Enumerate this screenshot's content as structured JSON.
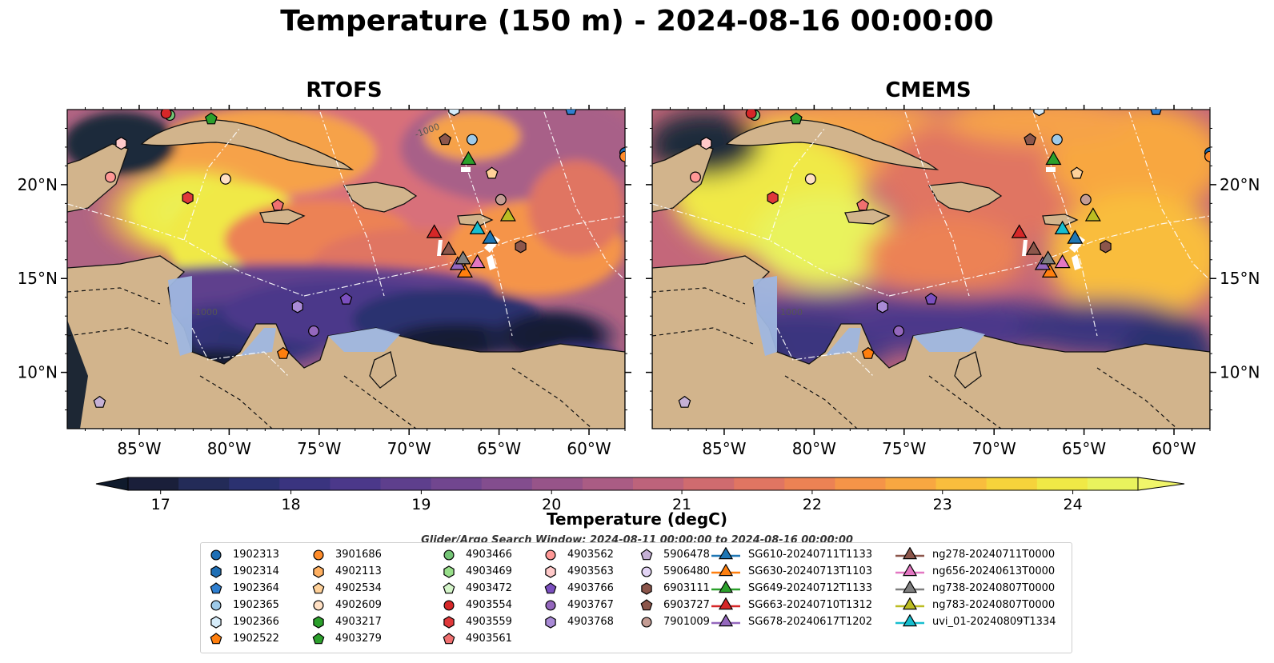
{
  "title": "Temperature (150 m) - 2024-08-16 00:00:00",
  "maps": [
    {
      "name": "RTOFS"
    },
    {
      "name": "CMEMS"
    }
  ],
  "lat_ticks": [
    "20°N",
    "15°N",
    "10°N"
  ],
  "lon_ticks": [
    "85°W",
    "80°W",
    "75°W",
    "70°W",
    "65°W",
    "60°W"
  ],
  "colorbar": {
    "label": "Temperature (degC)",
    "ticks": [
      "17",
      "18",
      "19",
      "20",
      "21",
      "22",
      "23",
      "24"
    ],
    "colors": [
      "#1a1f3a",
      "#232b58",
      "#2b3170",
      "#3a347f",
      "#4b388a",
      "#5e3f8d",
      "#71468f",
      "#834d8e",
      "#975489",
      "#aa5c84",
      "#bd637b",
      "#cf6b6f",
      "#e07562",
      "#ec8254",
      "#f59448",
      "#f8a741",
      "#f9bd3d",
      "#f6d33b",
      "#f0e946",
      "#e9f35d"
    ]
  },
  "search_window": "Glider/Argo Search Window: 2024-08-11 00:00:00 to 2024-08-16 00:00:00",
  "contour_label": "-1000",
  "legend": {
    "columns": [
      [
        {
          "label": "1902313",
          "shape": "circle",
          "color": "#1f6fb5"
        },
        {
          "label": "1902314",
          "shape": "hexagon",
          "color": "#1f6fb5"
        },
        {
          "label": "1902364",
          "shape": "pentagon",
          "color": "#2f7fd0"
        },
        {
          "label": "1902365",
          "shape": "circle",
          "color": "#9ecae9"
        },
        {
          "label": "1902366",
          "shape": "hexagon",
          "color": "#d6ecfa"
        },
        {
          "label": "1902522",
          "shape": "pentagon",
          "color": "#ff7f0e"
        }
      ],
      [
        {
          "label": "3901686",
          "shape": "circle",
          "color": "#ff8c2a"
        },
        {
          "label": "4902113",
          "shape": "hexagon",
          "color": "#ffb061"
        },
        {
          "label": "4902534",
          "shape": "pentagon",
          "color": "#ffd199"
        },
        {
          "label": "4902609",
          "shape": "circle",
          "color": "#ffe0c4"
        },
        {
          "label": "4903217",
          "shape": "hexagon",
          "color": "#2ca02c"
        },
        {
          "label": "4903279",
          "shape": "pentagon",
          "color": "#2ca02c"
        }
      ],
      [
        {
          "label": "4903466",
          "shape": "circle",
          "color": "#74c476"
        },
        {
          "label": "4903469",
          "shape": "hexagon",
          "color": "#98df8a"
        },
        {
          "label": "4903472",
          "shape": "pentagon",
          "color": "#d4f5c9"
        },
        {
          "label": "4903554",
          "shape": "circle",
          "color": "#d62728"
        },
        {
          "label": "4903559",
          "shape": "hexagon",
          "color": "#e0383a"
        },
        {
          "label": "4903561",
          "shape": "pentagon",
          "color": "#f07070"
        }
      ],
      [
        {
          "label": "4903562",
          "shape": "circle",
          "color": "#ff9896"
        },
        {
          "label": "4903563",
          "shape": "hexagon",
          "color": "#ffc9c9"
        },
        {
          "label": "4903766",
          "shape": "pentagon",
          "color": "#7b4fbf"
        },
        {
          "label": "4903767",
          "shape": "circle",
          "color": "#9467bd"
        },
        {
          "label": "4903768",
          "shape": "hexagon",
          "color": "#a98ad6"
        }
      ],
      [
        {
          "label": "5906478",
          "shape": "pentagon",
          "color": "#c5b0d5"
        },
        {
          "label": "5906480",
          "shape": "circle",
          "color": "#e3d4f5"
        },
        {
          "label": "6903111",
          "shape": "hexagon",
          "color": "#8c564b"
        },
        {
          "label": "6903727",
          "shape": "pentagon",
          "color": "#8c564b"
        },
        {
          "label": "7901009",
          "shape": "circle",
          "color": "#c49c94"
        }
      ],
      [
        {
          "label": "SG610-20240711T1133",
          "shape": "triangle",
          "color": "#1f77b4"
        },
        {
          "label": "SG630-20240713T1103",
          "shape": "triangle",
          "color": "#ff7f0e"
        },
        {
          "label": "SG649-20240712T1133",
          "shape": "triangle",
          "color": "#2ca02c"
        },
        {
          "label": "SG663-20240710T1312",
          "shape": "triangle",
          "color": "#d62728"
        },
        {
          "label": "SG678-20240617T1202",
          "shape": "triangle",
          "color": "#9467bd"
        }
      ],
      [
        {
          "label": "ng278-20240711T0000",
          "shape": "triangle",
          "color": "#8c564b"
        },
        {
          "label": "ng656-20240613T0000",
          "shape": "triangle",
          "color": "#e377c2"
        },
        {
          "label": "ng738-20240807T0000",
          "shape": "triangle",
          "color": "#7f7f7f"
        },
        {
          "label": "ng783-20240807T0000",
          "shape": "triangle",
          "color": "#bcbd22"
        },
        {
          "label": "uvi_01-20240809T1334",
          "shape": "triangle",
          "color": "#17becf"
        }
      ]
    ]
  },
  "chart_data": {
    "type": "heatmap",
    "title": "Temperature (150 m) - 2024-08-16 00:00:00",
    "panels": [
      "RTOFS",
      "CMEMS"
    ],
    "lon_range": [
      -89,
      -58
    ],
    "lat_range": [
      7,
      24
    ],
    "colorbar_label": "Temperature (degC)",
    "colorbar_range": [
      16.75,
      24.5
    ],
    "colorbar_ticks": [
      17,
      18,
      19,
      20,
      21,
      22,
      23,
      24
    ],
    "markers": [
      {
        "id": "1902313",
        "lon": -58.0,
        "lat": 21.7
      },
      {
        "id": "1902364",
        "lon": -61.0,
        "lat": 24.0
      },
      {
        "id": "1902365",
        "lon": -66.5,
        "lat": 22.4
      },
      {
        "id": "1902366",
        "lon": -67.5,
        "lat": 24.0
      },
      {
        "id": "1902522",
        "lon": -77.0,
        "lat": 11.0
      },
      {
        "id": "3901686",
        "lon": -58.0,
        "lat": 21.5
      },
      {
        "id": "4902534",
        "lon": -65.4,
        "lat": 20.6
      },
      {
        "id": "4902609",
        "lon": -80.2,
        "lat": 20.3
      },
      {
        "id": "4903279",
        "lon": -81.0,
        "lat": 23.5
      },
      {
        "id": "4903466",
        "lon": -83.3,
        "lat": 23.7
      },
      {
        "id": "4903554",
        "lon": -83.5,
        "lat": 23.8
      },
      {
        "id": "4903559",
        "lon": -82.3,
        "lat": 19.3
      },
      {
        "id": "4903561",
        "lon": -77.3,
        "lat": 18.9
      },
      {
        "id": "4903562",
        "lon": -86.6,
        "lat": 20.4
      },
      {
        "id": "4903563",
        "lon": -86.0,
        "lat": 22.2
      },
      {
        "id": "4903766",
        "lon": -73.5,
        "lat": 13.9
      },
      {
        "id": "4903767",
        "lon": -75.3,
        "lat": 12.2
      },
      {
        "id": "4903768",
        "lon": -76.2,
        "lat": 13.5
      },
      {
        "id": "5906478",
        "lon": -87.2,
        "lat": 8.4
      },
      {
        "id": "6903111",
        "lon": -63.8,
        "lat": 16.7
      },
      {
        "id": "6903727",
        "lon": -68.0,
        "lat": 22.4
      },
      {
        "id": "7901009",
        "lon": -64.9,
        "lat": 19.2
      },
      {
        "id": "SG610-20240711T1133",
        "lon": -65.5,
        "lat": 17.1
      },
      {
        "id": "SG630-20240713T1103",
        "lon": -66.9,
        "lat": 15.3
      },
      {
        "id": "SG649-20240712T1133",
        "lon": -66.7,
        "lat": 21.3
      },
      {
        "id": "SG663-20240710T1312",
        "lon": -68.6,
        "lat": 17.4
      },
      {
        "id": "SG678-20240617T1202",
        "lon": -67.3,
        "lat": 15.7
      },
      {
        "id": "ng278-20240711T0000",
        "lon": -67.8,
        "lat": 16.5
      },
      {
        "id": "ng656-20240613T0000",
        "lon": -66.2,
        "lat": 15.8
      },
      {
        "id": "ng738-20240807T0000",
        "lon": -67.0,
        "lat": 16.0
      },
      {
        "id": "ng783-20240807T0000",
        "lon": -64.5,
        "lat": 18.3
      },
      {
        "id": "uvi_01-20240809T1334",
        "lon": -66.2,
        "lat": 17.6
      }
    ]
  }
}
